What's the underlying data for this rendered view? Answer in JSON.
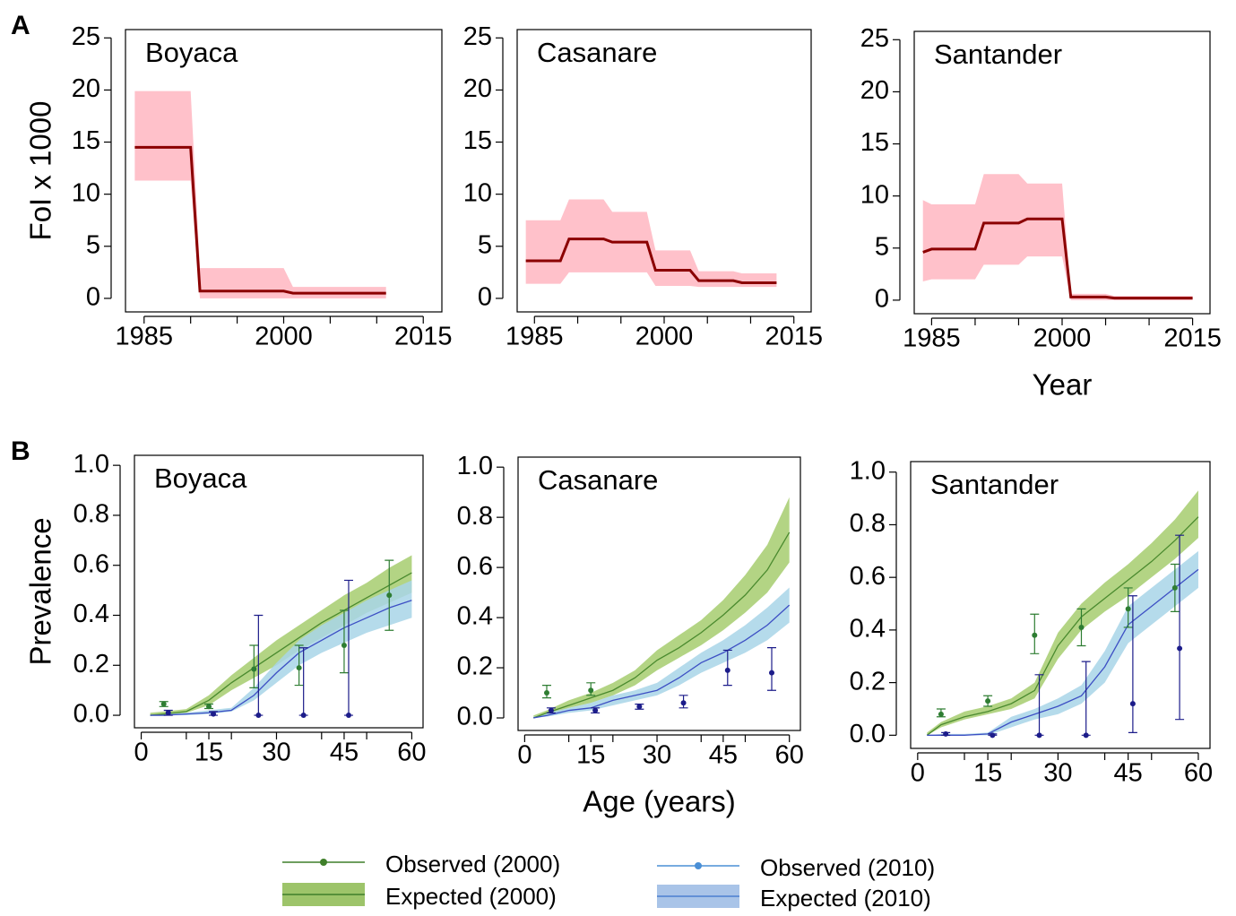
{
  "chart_data": [
    {
      "type": "line",
      "title": "Boyaca",
      "panel_label": "A",
      "y_label": "FoI x 1000",
      "xlim": [
        1983,
        2017
      ],
      "ylim": [
        -1.3,
        25.8
      ],
      "xticks": [
        1985,
        2000,
        2015
      ],
      "xminor": [
        1990,
        1995,
        2005,
        2010
      ],
      "yticks": [
        0,
        5,
        10,
        15,
        20,
        25
      ],
      "series": [
        {
          "style": "band",
          "color": "#8b0000",
          "band_color": "#ffb6c1",
          "x": [
            1984,
            1990,
            1991,
            2000,
            2001,
            2011
          ],
          "values": [
            14.5,
            14.5,
            0.7,
            0.7,
            0.5,
            0.5
          ],
          "lower": [
            11.3,
            11.3,
            0,
            0,
            0,
            0
          ],
          "upper": [
            19.9,
            19.9,
            2.9,
            2.9,
            1.1,
            1.1
          ]
        }
      ]
    },
    {
      "type": "line",
      "title": "Casanare",
      "xlim": [
        1983,
        2017
      ],
      "ylim": [
        -1.3,
        25.8
      ],
      "xticks": [
        1985,
        2000,
        2015
      ],
      "xminor": [
        1990,
        1995,
        2005,
        2010
      ],
      "yticks": [
        0,
        5,
        10,
        15,
        20,
        25
      ],
      "series": [
        {
          "style": "band",
          "color": "#8b0000",
          "band_color": "#ffb6c1",
          "x": [
            1984,
            1988,
            1989,
            1993,
            1994,
            1998,
            1999,
            2003,
            2004,
            2008,
            2009,
            2013
          ],
          "values": [
            3.6,
            3.6,
            5.7,
            5.7,
            5.4,
            5.4,
            2.7,
            2.7,
            1.7,
            1.7,
            1.5,
            1.5
          ],
          "lower": [
            1.4,
            1.4,
            2.5,
            2.5,
            2.5,
            2.5,
            1.2,
            1.2,
            1.1,
            1.1,
            1.1,
            1.1
          ],
          "upper": [
            7.5,
            7.5,
            9.5,
            9.5,
            8.3,
            8.3,
            4.6,
            4.6,
            2.6,
            2.6,
            2.4,
            2.4
          ]
        }
      ]
    },
    {
      "type": "line",
      "title": "Santander",
      "x_label": "Year",
      "xlim": [
        1983,
        2017
      ],
      "ylim": [
        -1.3,
        25.8
      ],
      "xticks": [
        1985,
        2000,
        2015
      ],
      "xminor": [
        1990,
        1995,
        2005,
        2010
      ],
      "yticks": [
        0,
        5,
        10,
        15,
        20,
        25
      ],
      "series": [
        {
          "style": "band",
          "color": "#8b0000",
          "band_color": "#ffb6c1",
          "x": [
            1984,
            1985,
            1986,
            1990,
            1991,
            1995,
            1996,
            2000,
            2001,
            2005,
            2006,
            2015
          ],
          "values": [
            4.6,
            4.9,
            4.9,
            4.9,
            7.4,
            7.4,
            7.8,
            7.8,
            0.3,
            0.3,
            0.2,
            0.2
          ],
          "lower": [
            1.8,
            2,
            2,
            2,
            3.4,
            3.4,
            4.2,
            4.2,
            0,
            0,
            0,
            0
          ],
          "upper": [
            9.6,
            9.2,
            9.2,
            9.2,
            12.1,
            12.1,
            11.2,
            11.2,
            0.6,
            0.6,
            0.4,
            0.4
          ]
        }
      ]
    },
    {
      "type": "line",
      "title": "Boyaca",
      "panel_label": "B",
      "y_label": "Prevalence",
      "xlim": [
        -1.5,
        62.5
      ],
      "ylim": [
        -0.05,
        1.04
      ],
      "xticks": [
        0,
        15,
        30,
        45,
        60
      ],
      "xminor": [
        10,
        20,
        40,
        50
      ],
      "yticks": [
        {
          "value": 0,
          "label": "0.0"
        },
        0.2,
        0.4,
        0.6,
        0.8,
        {
          "value": 1,
          "label": "1.0"
        }
      ],
      "series": [
        {
          "style": "band",
          "color": "#4a8a2e",
          "band_color": "#a6cc6e",
          "x": [
            2,
            5,
            10,
            15,
            20,
            25,
            30,
            35,
            40,
            45,
            50,
            55,
            60
          ],
          "values": [
            0,
            0.005,
            0.015,
            0.06,
            0.13,
            0.19,
            0.25,
            0.31,
            0.37,
            0.42,
            0.47,
            0.52,
            0.57
          ],
          "lower": [
            0,
            0,
            0.01,
            0.04,
            0.1,
            0.15,
            0.2,
            0.26,
            0.31,
            0.36,
            0.41,
            0.45,
            0.49
          ],
          "upper": [
            0.01,
            0.015,
            0.025,
            0.08,
            0.16,
            0.23,
            0.3,
            0.36,
            0.42,
            0.48,
            0.53,
            0.59,
            0.64
          ]
        },
        {
          "style": "band",
          "color": "#3d4fc4",
          "band_color": "#a8d5e8",
          "x": [
            2,
            5,
            10,
            15,
            20,
            25,
            30,
            35,
            40,
            45,
            50,
            55,
            60
          ],
          "values": [
            0,
            0,
            0.005,
            0.01,
            0.02,
            0.08,
            0.17,
            0.25,
            0.3,
            0.35,
            0.39,
            0.43,
            0.46
          ],
          "lower": [
            0,
            0,
            0,
            0.005,
            0.015,
            0.06,
            0.13,
            0.2,
            0.25,
            0.29,
            0.33,
            0.36,
            0.39
          ],
          "upper": [
            0,
            0.005,
            0.01,
            0.02,
            0.03,
            0.11,
            0.21,
            0.3,
            0.36,
            0.41,
            0.46,
            0.5,
            0.54
          ]
        },
        {
          "style": "errorbar",
          "color": "#2e7d32",
          "x": [
            5,
            15,
            25,
            35,
            45,
            55
          ],
          "values": [
            0.045,
            0.035,
            0.185,
            0.19,
            0.28,
            0.48
          ],
          "lower": [
            0.035,
            0.027,
            0.11,
            0.12,
            0.17,
            0.34
          ],
          "upper": [
            0.055,
            0.045,
            0.28,
            0.28,
            0.42,
            0.62
          ]
        },
        {
          "style": "errorbar",
          "color": "#1c1c8a",
          "x": [
            6,
            16,
            26,
            36,
            46
          ],
          "values": [
            0.01,
            0.005,
            0,
            0,
            0
          ],
          "lower": [
            0,
            0,
            0,
            0,
            0
          ],
          "upper": [
            0.02,
            0.015,
            0.4,
            0.27,
            0.54
          ]
        }
      ]
    },
    {
      "type": "line",
      "title": "Casanare",
      "x_label": "Age (years)",
      "xlim": [
        -1.5,
        62.5
      ],
      "ylim": [
        -0.05,
        1.04
      ],
      "xticks": [
        0,
        15,
        30,
        45,
        60
      ],
      "xminor": [
        10,
        20,
        40,
        50
      ],
      "yticks": [
        {
          "value": 0,
          "label": "0.0"
        },
        0.2,
        0.4,
        0.6,
        0.8,
        {
          "value": 1,
          "label": "1.0"
        }
      ],
      "series": [
        {
          "style": "band",
          "color": "#4a8a2e",
          "band_color": "#a6cc6e",
          "x": [
            2,
            5,
            10,
            15,
            20,
            25,
            30,
            35,
            40,
            45,
            50,
            55,
            60
          ],
          "values": [
            0,
            0.02,
            0.05,
            0.08,
            0.11,
            0.16,
            0.23,
            0.28,
            0.34,
            0.41,
            0.49,
            0.59,
            0.74
          ],
          "lower": [
            0,
            0.01,
            0.04,
            0.06,
            0.09,
            0.13,
            0.19,
            0.24,
            0.29,
            0.35,
            0.42,
            0.5,
            0.62
          ],
          "upper": [
            0.01,
            0.03,
            0.07,
            0.1,
            0.14,
            0.19,
            0.27,
            0.33,
            0.39,
            0.47,
            0.57,
            0.69,
            0.88
          ]
        },
        {
          "style": "band",
          "color": "#3d4fc4",
          "band_color": "#a8d5e8",
          "x": [
            2,
            5,
            10,
            15,
            20,
            25,
            30,
            35,
            40,
            45,
            50,
            55,
            60
          ],
          "values": [
            0,
            0.01,
            0.03,
            0.04,
            0.07,
            0.09,
            0.11,
            0.16,
            0.22,
            0.26,
            0.31,
            0.37,
            0.45
          ],
          "lower": [
            0,
            0.005,
            0.02,
            0.03,
            0.05,
            0.07,
            0.09,
            0.13,
            0.18,
            0.22,
            0.26,
            0.31,
            0.38
          ],
          "upper": [
            0.005,
            0.02,
            0.04,
            0.06,
            0.09,
            0.11,
            0.14,
            0.2,
            0.26,
            0.31,
            0.37,
            0.44,
            0.52
          ]
        },
        {
          "style": "errorbar",
          "color": "#2e7d32",
          "x": [
            5,
            15
          ],
          "values": [
            0.1,
            0.11
          ],
          "lower": [
            0.08,
            0.09
          ],
          "upper": [
            0.13,
            0.14
          ]
        },
        {
          "style": "errorbar",
          "color": "#1c1c8a",
          "x": [
            6,
            16,
            26,
            36,
            46,
            56
          ],
          "values": [
            0.03,
            0.03,
            0.045,
            0.06,
            0.19,
            0.18
          ],
          "lower": [
            0.02,
            0.02,
            0.035,
            0.04,
            0.13,
            0.11
          ],
          "upper": [
            0.04,
            0.04,
            0.055,
            0.09,
            0.27,
            0.28
          ]
        }
      ]
    },
    {
      "type": "line",
      "title": "Santander",
      "xlim": [
        -1.5,
        62.5
      ],
      "ylim": [
        -0.05,
        1.04
      ],
      "xticks": [
        0,
        15,
        30,
        45,
        60
      ],
      "xminor": [
        10,
        20,
        40,
        50
      ],
      "yticks": [
        {
          "value": 0,
          "label": "0.0"
        },
        0.2,
        0.4,
        0.6,
        0.8,
        {
          "value": 1,
          "label": "1.0"
        }
      ],
      "series": [
        {
          "style": "band",
          "color": "#4a8a2e",
          "band_color": "#a6cc6e",
          "x": [
            2,
            5,
            10,
            15,
            20,
            25,
            30,
            35,
            40,
            45,
            50,
            55,
            60
          ],
          "values": [
            0,
            0.04,
            0.07,
            0.09,
            0.12,
            0.17,
            0.34,
            0.45,
            0.52,
            0.59,
            0.66,
            0.74,
            0.83
          ],
          "lower": [
            0,
            0.03,
            0.06,
            0.08,
            0.1,
            0.14,
            0.29,
            0.4,
            0.47,
            0.53,
            0.6,
            0.67,
            0.75
          ],
          "upper": [
            0.01,
            0.05,
            0.09,
            0.11,
            0.14,
            0.2,
            0.39,
            0.5,
            0.58,
            0.65,
            0.73,
            0.82,
            0.93
          ]
        },
        {
          "style": "band",
          "color": "#3d4fc4",
          "band_color": "#a8d5e8",
          "x": [
            2,
            5,
            10,
            15,
            20,
            25,
            30,
            35,
            40,
            45,
            50,
            55,
            60
          ],
          "values": [
            0,
            0,
            0,
            0.005,
            0.05,
            0.08,
            0.11,
            0.15,
            0.26,
            0.42,
            0.49,
            0.56,
            0.63
          ],
          "lower": [
            0,
            0,
            0,
            0,
            0.03,
            0.06,
            0.08,
            0.12,
            0.2,
            0.35,
            0.42,
            0.49,
            0.56
          ],
          "upper": [
            0,
            0.005,
            0.005,
            0.01,
            0.07,
            0.1,
            0.14,
            0.19,
            0.32,
            0.49,
            0.56,
            0.63,
            0.7
          ]
        },
        {
          "style": "errorbar",
          "color": "#2e7d32",
          "x": [
            5,
            15,
            25,
            35,
            45,
            55
          ],
          "values": [
            0.08,
            0.13,
            0.38,
            0.41,
            0.48,
            0.56
          ],
          "lower": [
            0.07,
            0.11,
            0.31,
            0.34,
            0.41,
            0.47
          ],
          "upper": [
            0.1,
            0.15,
            0.46,
            0.48,
            0.56,
            0.65
          ]
        },
        {
          "style": "errorbar",
          "color": "#1c1c8a",
          "x": [
            6,
            16,
            26,
            36,
            46,
            56
          ],
          "values": [
            0.005,
            0,
            0,
            0,
            0.12,
            0.33
          ],
          "lower": [
            0,
            0,
            0,
            0,
            0.01,
            0.06
          ],
          "upper": [
            0.01,
            0.005,
            0.23,
            0.28,
            0.53,
            0.76
          ]
        }
      ]
    }
  ],
  "legend": [
    {
      "name": "Observed (2000)",
      "style": "errorbar",
      "color": "#3f7f2a"
    },
    {
      "name": "Expected (2000)",
      "style": "band",
      "color": "#3f7f2a",
      "band_color": "#9dc46a"
    },
    {
      "name": "Observed (2010)",
      "style": "errorbar",
      "color": "#4a8fd6"
    },
    {
      "name": "Expected (2010)",
      "style": "band",
      "color": "#4a7fd0",
      "band_color": "#a9c4e8"
    }
  ]
}
